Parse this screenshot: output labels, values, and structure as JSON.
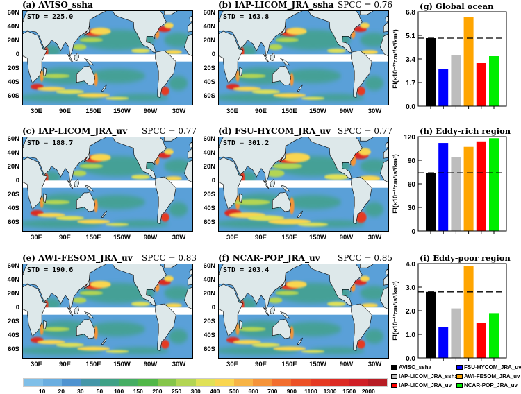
{
  "panels": [
    {
      "label": "(a) AVISO_ssha",
      "std": "STD = 225.0",
      "spcc": ""
    },
    {
      "label": "(b) IAP-LICOM_JRA_ssha",
      "std": "STD = 163.8",
      "spcc": "SPCC = 0.76"
    },
    {
      "label": "(c) IAP-LICOM_JRA_uv",
      "std": "STD = 188.7",
      "spcc": "SPCC = 0.77"
    },
    {
      "label": "(d) FSU-HYCOM_JRA_uv",
      "std": "STD = 301.2",
      "spcc": "SPCC = 0.77"
    },
    {
      "label": "(e) AWI-FESOM_JRA_uv",
      "std": "STD = 190.6",
      "spcc": "SPCC = 0.83"
    },
    {
      "label": "(f) NCAR-POP_JRA_uv",
      "std": "STD = 203.4",
      "spcc": "SPCC = 0.85"
    }
  ],
  "lat_labels": [
    "60N",
    "40N",
    "20N",
    "0",
    "20S",
    "40S",
    "60S"
  ],
  "lon_labels": [
    "30E",
    "90E",
    "150E",
    "150W",
    "90W",
    "30W"
  ],
  "colorbar": {
    "labels": [
      "10",
      "20",
      "30",
      "50",
      "100",
      "150",
      "200",
      "250",
      "300",
      "400",
      "500",
      "600",
      "700",
      "900",
      "1100",
      "1300",
      "1500",
      "2000"
    ],
    "colors": [
      "#7fbfe8",
      "#6aaee0",
      "#4f93d0",
      "#4496a8",
      "#3fa186",
      "#45ad63",
      "#51b748",
      "#85c54a",
      "#b3d553",
      "#e0e156",
      "#f9d650",
      "#f7b446",
      "#f59439",
      "#f26e2e",
      "#ec5126",
      "#e53b23",
      "#dc2a22",
      "#d01f26",
      "#b71c24"
    ]
  },
  "chart_data": [
    {
      "type": "bar",
      "title": "(g) Global ocean",
      "ylabel": "EI(×10⁻¹³cm²/s²/km²)",
      "ylim": [
        0,
        6.8
      ],
      "yticks": [
        "0.0",
        "1.7",
        "3.4",
        "5.1",
        "6.8"
      ],
      "reference_line": 4.9,
      "categories": [
        "AVISO_ssha",
        "IAP-LICOM_JRA_ssha",
        "IAP-LICOM_JRA_uv",
        "FSU-HYCOM_JRA_uv",
        "AWI-FESOM_JRA_uv",
        "NCAR-POP_JRA_uv"
      ],
      "values": [
        4.9,
        2.7,
        3.7,
        6.4,
        3.1,
        3.6
      ]
    },
    {
      "type": "bar",
      "title": "(h) Eddy-rich region",
      "ylabel": "EI(×10⁻¹³cm²/s²/km²)",
      "ylim": [
        0,
        120
      ],
      "yticks": [
        "0",
        "30",
        "60",
        "90",
        "120"
      ],
      "reference_line": 74,
      "categories": [
        "AVISO_ssha",
        "IAP-LICOM_JRA_ssha",
        "IAP-LICOM_JRA_uv",
        "FSU-HYCOM_JRA_uv",
        "AWI-FESOM_JRA_uv",
        "NCAR-POP_JRA_uv"
      ],
      "values": [
        74,
        112,
        94,
        107,
        114,
        118
      ]
    },
    {
      "type": "bar",
      "title": "(i) Eddy-poor region",
      "ylabel": "EI(×10⁻¹³cm²/s²/km²)",
      "ylim": [
        0,
        4.0
      ],
      "yticks": [
        "0.0",
        "1.0",
        "2.0",
        "3.0",
        "4.0"
      ],
      "reference_line": 2.8,
      "categories": [
        "AVISO_ssha",
        "IAP-LICOM_JRA_ssha",
        "IAP-LICOM_JRA_uv",
        "FSU-HYCOM_JRA_uv",
        "AWI-FESOM_JRA_uv",
        "NCAR-POP_JRA_uv"
      ],
      "values": [
        2.8,
        1.3,
        2.1,
        3.9,
        1.5,
        1.9
      ]
    }
  ],
  "legend": [
    {
      "label": "AVISO_ssha",
      "color": "#000000"
    },
    {
      "label": "FSU-HYCOM_JRA_uv",
      "color": "#0000ff"
    },
    {
      "label": "IAP-LICOM_JRA_ssha",
      "color": "#bdbdbd"
    },
    {
      "label": "AWI-FESOM_JRA_uv",
      "color": "#ffa500"
    },
    {
      "label": "IAP-LICOM_JRA_uv",
      "color": "#ff0000"
    },
    {
      "label": "NCAR-POP_JRA_uv",
      "color": "#00ee00"
    }
  ]
}
